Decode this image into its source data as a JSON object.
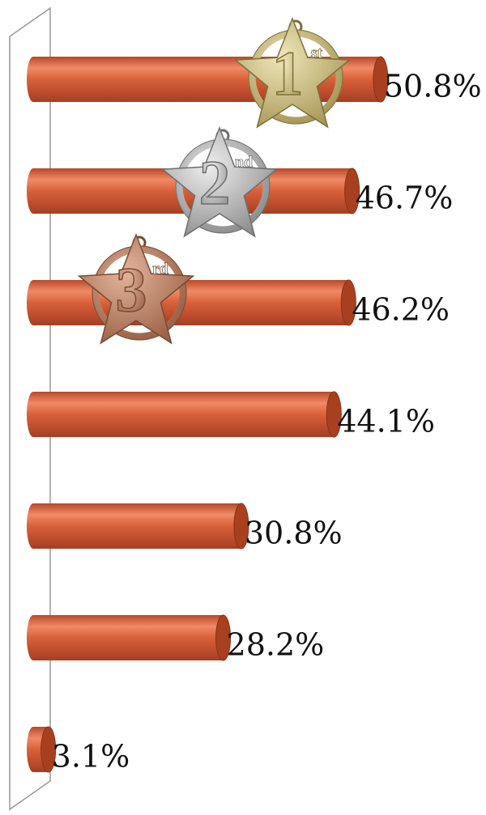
{
  "chart_data": {
    "type": "bar",
    "orientation": "horizontal",
    "values": [
      50.8,
      46.7,
      46.2,
      44.1,
      30.8,
      28.2,
      3.1
    ],
    "value_labels": [
      "50.8%",
      "46.7%",
      "46.2%",
      "44.1%",
      "30.8%",
      "28.2%",
      "3.1%"
    ],
    "color": "#d9603b",
    "xlim": [
      0,
      60
    ],
    "medals": [
      {
        "numeral": "1",
        "suffix": "st"
      },
      {
        "numeral": "2",
        "suffix": "nd"
      },
      {
        "numeral": "3",
        "suffix": "rd"
      }
    ]
  }
}
